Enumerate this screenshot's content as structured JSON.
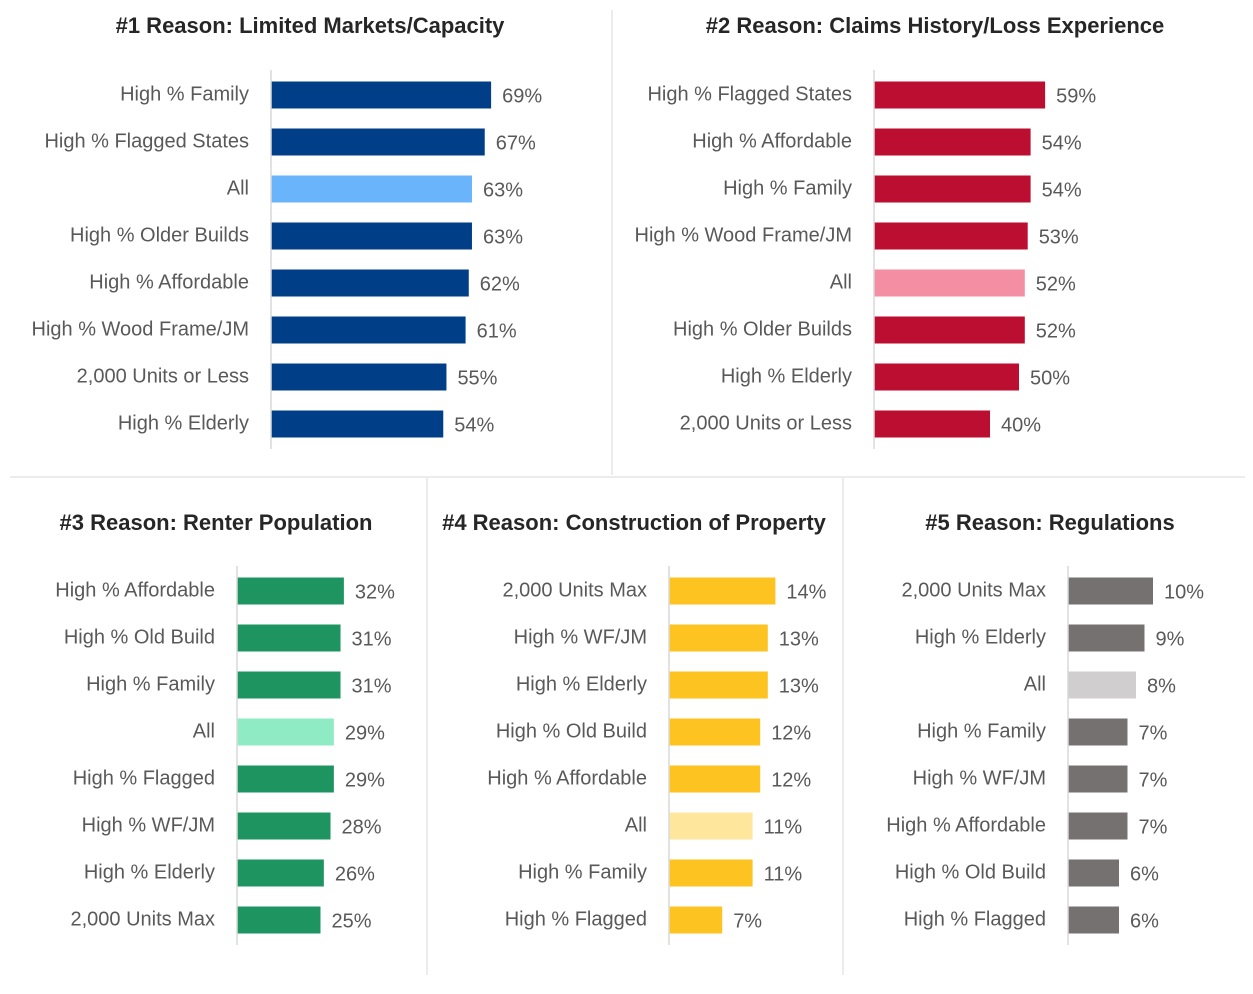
{
  "chart_data": [
    {
      "type": "bar",
      "title": "#1 Reason: Limited Markets/Capacity",
      "categories": [
        "High % Family",
        "High % Flagged States",
        "All",
        "High % Older Builds",
        "High % Affordable",
        "High % Wood Frame/JM",
        "2,000 Units or Less",
        "High % Elderly"
      ],
      "values": [
        69,
        67,
        63,
        63,
        62,
        61,
        55,
        54
      ],
      "value_labels": [
        "69%",
        "67%",
        "63%",
        "63%",
        "62%",
        "61%",
        "55%",
        "54%"
      ],
      "colors": [
        "#003f87",
        "#003f87",
        "#6ab4fb",
        "#003f87",
        "#003f87",
        "#003f87",
        "#003f87",
        "#003f87"
      ]
    },
    {
      "type": "bar",
      "title": "#2 Reason: Claims History/Loss Experience",
      "categories": [
        "High % Flagged States",
        "High % Affordable",
        "High % Family",
        "High % Wood Frame/JM",
        "All",
        "High % Older Builds",
        "High % Elderly",
        "2,000 Units or Less"
      ],
      "values": [
        59,
        54,
        54,
        53,
        52,
        52,
        50,
        40
      ],
      "value_labels": [
        "59%",
        "54%",
        "54%",
        "53%",
        "52%",
        "52%",
        "50%",
        "40%"
      ],
      "colors": [
        "#bb0e30",
        "#bb0e30",
        "#bb0e30",
        "#bb0e30",
        "#f48fa3",
        "#bb0e30",
        "#bb0e30",
        "#bb0e30"
      ]
    },
    {
      "type": "bar",
      "title": "#3 Reason: Renter Population",
      "categories": [
        "High % Affordable",
        "High % Old Build",
        "High % Family",
        "All",
        "High % Flagged",
        "High % WF/JM",
        "High % Elderly",
        "2,000 Units Max"
      ],
      "values": [
        32,
        31,
        31,
        29,
        29,
        28,
        26,
        25
      ],
      "value_labels": [
        "32%",
        "31%",
        "31%",
        "29%",
        "29%",
        "28%",
        "26%",
        "25%"
      ],
      "colors": [
        "#1e9460",
        "#1e9460",
        "#1e9460",
        "#8eebc3",
        "#1e9460",
        "#1e9460",
        "#1e9460",
        "#1e9460"
      ]
    },
    {
      "type": "bar",
      "title": "#4 Reason: Construction of Property",
      "categories": [
        "2,000 Units Max",
        "High % WF/JM",
        "High % Elderly",
        "High % Old Build",
        "High % Affordable",
        "All",
        "High % Family",
        "High % Flagged"
      ],
      "values": [
        14,
        13,
        13,
        12,
        12,
        11,
        11,
        7
      ],
      "value_labels": [
        "14%",
        "13%",
        "13%",
        "12%",
        "12%",
        "11%",
        "11%",
        "7%"
      ],
      "colors": [
        "#fdc321",
        "#fdc321",
        "#fdc321",
        "#fdc321",
        "#fdc321",
        "#fee79c",
        "#fdc321",
        "#fdc321"
      ]
    },
    {
      "type": "bar",
      "title": "#5 Reason: Regulations",
      "categories": [
        "2,000 Units Max",
        "High % Elderly",
        "All",
        "High % Family",
        "High % WF/JM",
        "High % Affordable",
        "High % Old Build",
        "High % Flagged"
      ],
      "values": [
        10,
        9,
        8,
        7,
        7,
        7,
        6,
        6
      ],
      "value_labels": [
        "10%",
        "9%",
        "8%",
        "7%",
        "7%",
        "7%",
        "6%",
        "6%"
      ],
      "colors": [
        "#757171",
        "#757171",
        "#d0cece",
        "#757171",
        "#757171",
        "#757171",
        "#757171",
        "#757171"
      ]
    }
  ]
}
